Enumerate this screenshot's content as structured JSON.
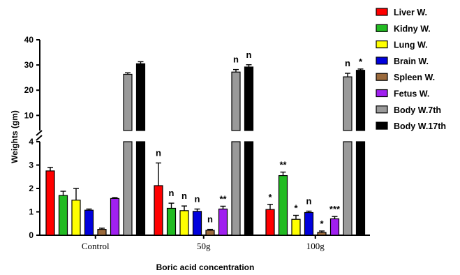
{
  "chart_data": {
    "type": "bar",
    "xlabel": "Boric acid concentration",
    "ylabel": "Weights (gm)",
    "y_axis": {
      "lower_segment": [
        0,
        4
      ],
      "upper_segment": [
        4,
        40
      ],
      "lower_ticks": [
        "0",
        "1",
        "2",
        "3",
        "4"
      ],
      "upper_ticks": [
        "10",
        "20",
        "30",
        "40"
      ],
      "broken": true
    },
    "grid": false,
    "legend_position": "right",
    "categories": [
      "Control",
      "50g",
      "100g"
    ],
    "series": [
      {
        "name": "Liver W.",
        "color": "#ff0000",
        "values": [
          2.75,
          2.12,
          1.1
        ],
        "errors": [
          0.15,
          0.97,
          0.22
        ],
        "sig": [
          "",
          "n",
          "*"
        ]
      },
      {
        "name": "Kidny W.",
        "color": "#22bb22",
        "values": [
          1.7,
          1.15,
          2.55
        ],
        "errors": [
          0.18,
          0.22,
          0.15
        ],
        "sig": [
          "",
          "n",
          "**"
        ]
      },
      {
        "name": "Lung W.",
        "color": "#ffff00",
        "values": [
          1.5,
          1.05,
          0.68
        ],
        "errors": [
          0.5,
          0.2,
          0.17
        ],
        "sig": [
          "",
          "n",
          "*"
        ]
      },
      {
        "name": "Brain W.",
        "color": "#0000dd",
        "values": [
          1.07,
          1.02,
          0.97
        ],
        "errors": [
          0.05,
          0.1,
          0.06
        ],
        "sig": [
          "",
          "n",
          "n"
        ]
      },
      {
        "name": "Spleen W.",
        "color": "#9b6a3c",
        "values": [
          0.25,
          0.21,
          0.12
        ],
        "errors": [
          0.05,
          0.04,
          0.06
        ],
        "sig": [
          "",
          "n",
          "*"
        ]
      },
      {
        "name": "Fetus W.",
        "color": "#a020f0",
        "values": [
          1.57,
          1.12,
          0.7
        ],
        "errors": [
          0.04,
          0.12,
          0.1
        ],
        "sig": [
          "",
          "**",
          "***"
        ]
      },
      {
        "name": "Body W.7th",
        "color": "#9a9a9a",
        "values": [
          26.3,
          27.2,
          25.3
        ],
        "errors": [
          0.6,
          1.0,
          1.4
        ],
        "sig": [
          "",
          "n",
          "n"
        ]
      },
      {
        "name": "Body W.17th",
        "color": "#000000",
        "values": [
          30.5,
          29.2,
          27.9
        ],
        "errors": [
          0.8,
          0.9,
          0.5
        ],
        "sig": [
          "",
          "n",
          "*"
        ]
      }
    ]
  }
}
